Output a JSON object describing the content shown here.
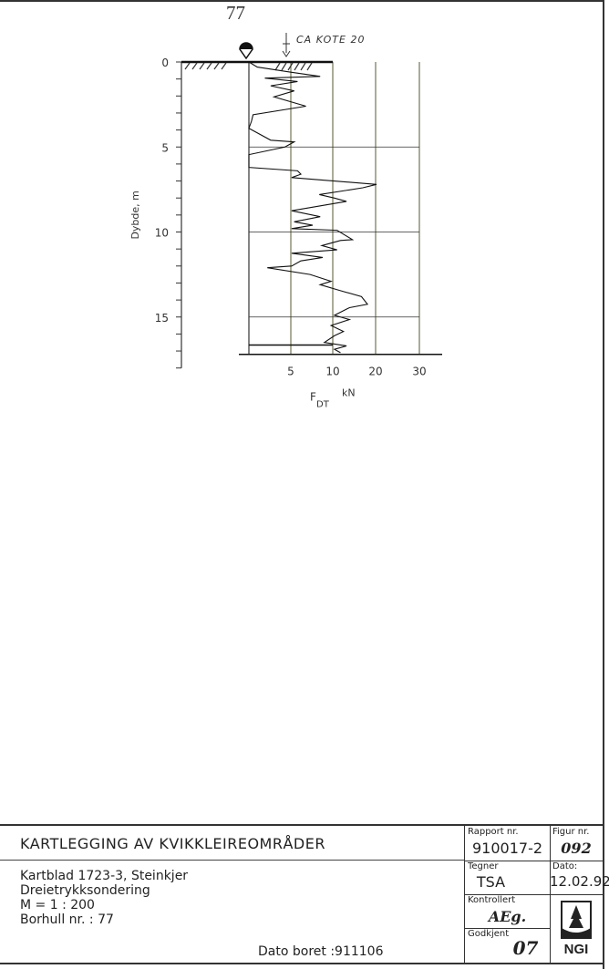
{
  "page_number": "77",
  "chart_data": {
    "type": "line",
    "xlabel": "F",
    "xlabel_sub": "DT",
    "xunit": "kN",
    "ylabel": "Dybde, m",
    "x_ticks": [
      5,
      10,
      20,
      30
    ],
    "x_scale": "piecewise (0-5-10-20-30 equally spaced)",
    "y_ticks": [
      0,
      5,
      10,
      15
    ],
    "ylim": [
      0,
      18
    ],
    "xlim": [
      0,
      30
    ],
    "grid": "vertical at 5,10,20,30; horizontal at 5,10,15",
    "annotation": "CA KOTE 20",
    "groundwater_symbol": true,
    "series": [
      {
        "points": [
          [
            0,
            0
          ],
          [
            1,
            0.3
          ],
          [
            5,
            0.6
          ],
          [
            8.5,
            0.85
          ],
          [
            1.9,
            0.95
          ],
          [
            5.8,
            1.15
          ],
          [
            2.6,
            1.4
          ],
          [
            5.4,
            1.7
          ],
          [
            3,
            2.05
          ],
          [
            6.8,
            2.6
          ],
          [
            0.5,
            3.1
          ],
          [
            0.3,
            3.5
          ],
          [
            0,
            3.9
          ],
          [
            2.6,
            4.6
          ],
          [
            5.4,
            4.7
          ],
          [
            4.3,
            5
          ],
          [
            0,
            5.45
          ],
          [
            0,
            6.2
          ],
          [
            5.8,
            6.4
          ],
          [
            6.2,
            6.6
          ],
          [
            5.1,
            6.8
          ],
          [
            20.2,
            7.2
          ],
          [
            17,
            7.4
          ],
          [
            8.4,
            7.8
          ],
          [
            10.3,
            8.0
          ],
          [
            13.2,
            8.2
          ],
          [
            5.1,
            8.75
          ],
          [
            8.5,
            9.1
          ],
          [
            5.4,
            9.4
          ],
          [
            7.6,
            9.6
          ],
          [
            5.1,
            9.8
          ],
          [
            11,
            9.9
          ],
          [
            14.6,
            10.45
          ],
          [
            11.8,
            10.5
          ],
          [
            8.7,
            10.8
          ],
          [
            11,
            11.05
          ],
          [
            5.1,
            11.25
          ],
          [
            8.8,
            11.5
          ],
          [
            6.2,
            11.7
          ],
          [
            5.1,
            12.0
          ],
          [
            2.2,
            12.1
          ],
          [
            7.3,
            12.5
          ],
          [
            9.8,
            12.9
          ],
          [
            8.5,
            13.1
          ],
          [
            11.8,
            13.45
          ],
          [
            16.7,
            13.8
          ],
          [
            18.1,
            14.25
          ],
          [
            13.9,
            14.45
          ],
          [
            10.4,
            14.9
          ],
          [
            13.9,
            15.15
          ],
          [
            9.8,
            15.5
          ],
          [
            12.5,
            15.85
          ],
          [
            10.4,
            16.1
          ],
          [
            9,
            16.5
          ],
          [
            13.2,
            16.7
          ],
          [
            10.4,
            16.9
          ],
          [
            11.8,
            17.1
          ]
        ],
        "end_depth": 17.2
      }
    ]
  },
  "title_block": {
    "title": "KARTLEGGING AV KVIKKLEIREOMRÅDER",
    "lines": [
      "Kartblad 1723-3, Steinkjer",
      "Dreietrykksondering",
      "M = 1 : 200",
      "Borhull nr. : 77"
    ],
    "dato_boret": "Dato boret :911106",
    "rapport_label": "Rapport nr.",
    "rapport_value": "910017-2",
    "figur_label": "Figur nr.",
    "figur_value": "092",
    "tegner_label": "Tegner",
    "tegner_value": "TSA",
    "dato_label": "Dato:",
    "dato_value": "12.02.92",
    "kontrollert_label": "Kontrollert",
    "kontrollert_value": "AEg.",
    "godkjent_label": "Godkjent",
    "godkjent_value": "07",
    "logo_text": "NGI"
  }
}
